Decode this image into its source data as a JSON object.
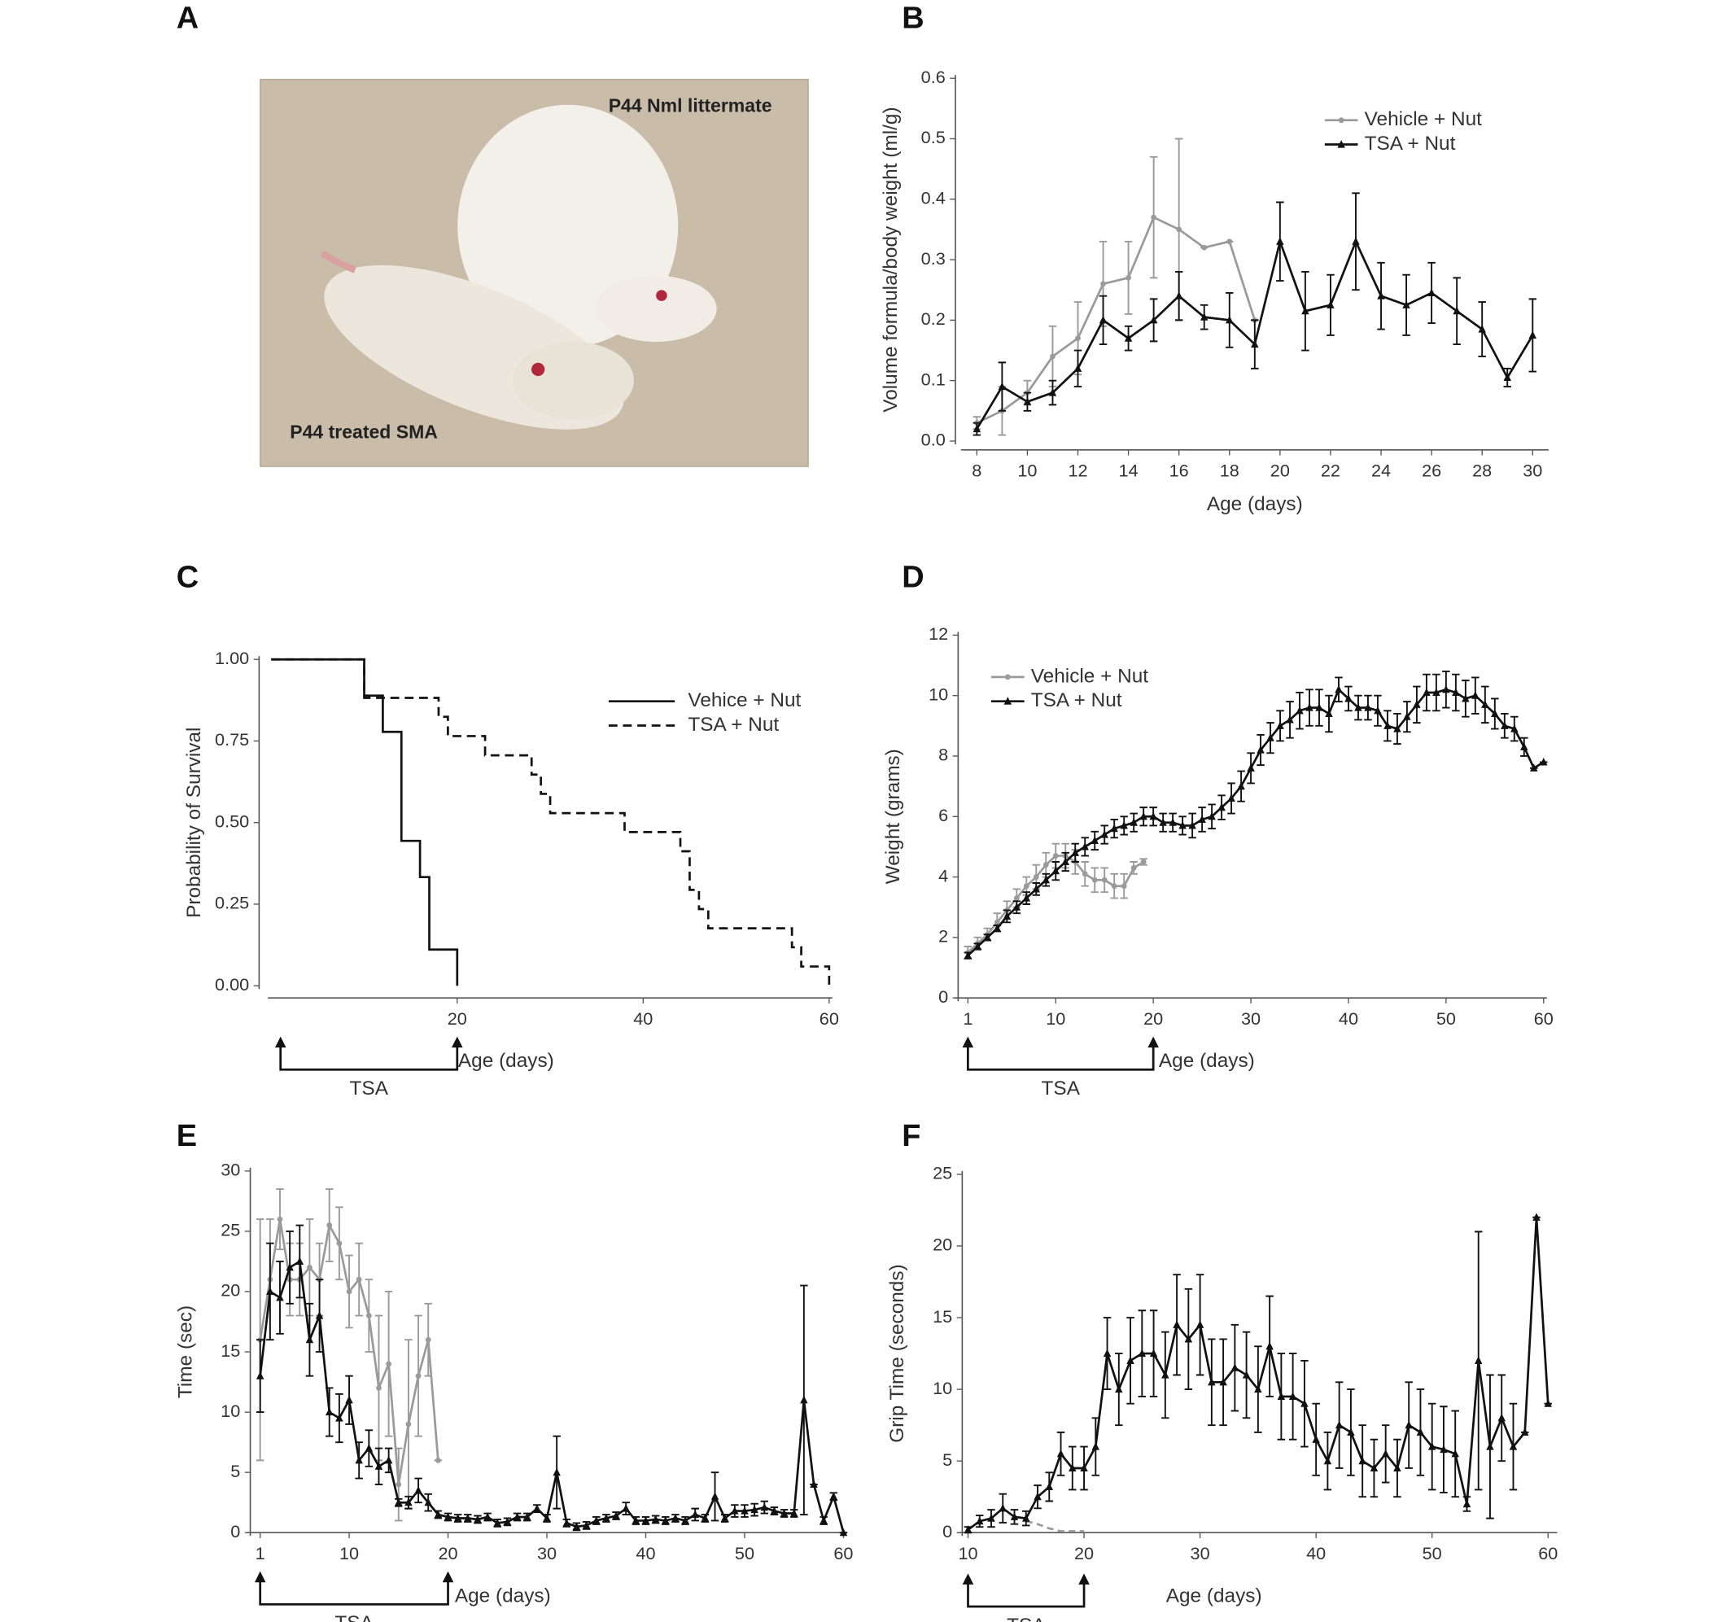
{
  "photo": {
    "panel": "A",
    "labels": [
      "P44 Nml littermate",
      "P44 treated SMA"
    ]
  },
  "chart_data": [
    {
      "type": "line",
      "panel": "B",
      "x_label": "Age (days)",
      "y_label": "Volume formula/body weight (ml/g)",
      "xlim": [
        7.5,
        30.5
      ],
      "ylim": [
        0,
        0.6
      ],
      "xticks": [
        8,
        10,
        12,
        14,
        16,
        18,
        20,
        22,
        24,
        26,
        28,
        30
      ],
      "yticks": [
        {
          "value": 0,
          "label": "0.0"
        },
        0.1,
        0.2,
        0.3,
        0.4,
        0.5,
        0.6
      ],
      "legend": "upper right",
      "series": [
        {
          "name": "Vehicle + Nut",
          "color": "#9a9a9a",
          "marker": "circle",
          "line_style": "solid",
          "x": [
            8,
            9,
            10,
            11,
            12,
            13,
            14,
            15,
            16,
            17,
            18,
            19
          ],
          "values": [
            0.03,
            0.05,
            0.08,
            0.14,
            0.17,
            0.26,
            0.27,
            0.37,
            0.35,
            0.32,
            0.33,
            0.2
          ],
          "errors": [
            0.01,
            0.04,
            0.02,
            0.05,
            0.06,
            0.07,
            0.06,
            0.1,
            0.15,
            0,
            0,
            0
          ]
        },
        {
          "name": "TSA + Nut",
          "color": "#111111",
          "marker": "triangle",
          "line_style": "solid",
          "x": [
            8,
            9,
            10,
            11,
            12,
            13,
            14,
            15,
            16,
            17,
            18,
            19,
            20,
            21,
            22,
            23,
            24,
            25,
            26,
            27,
            28,
            29,
            30
          ],
          "values": [
            0.02,
            0.09,
            0.065,
            0.08,
            0.12,
            0.2,
            0.17,
            0.2,
            0.24,
            0.205,
            0.2,
            0.16,
            0.33,
            0.215,
            0.225,
            0.33,
            0.24,
            0.225,
            0.245,
            0.215,
            0.185,
            0.105,
            0.175
          ],
          "errors": [
            0.01,
            0.04,
            0.015,
            0.02,
            0.03,
            0.04,
            0.02,
            0.035,
            0.04,
            0.02,
            0.045,
            0.04,
            0.065,
            0.065,
            0.05,
            0.08,
            0.055,
            0.05,
            0.05,
            0.055,
            0.045,
            0.015,
            0.06
          ]
        }
      ]
    },
    {
      "type": "step",
      "panel": "C",
      "x_label": "Age (days)",
      "y_label": "Probability of Survival",
      "xlim": [
        0,
        60
      ],
      "ylim": [
        0,
        1
      ],
      "xticks": [
        20,
        40,
        60
      ],
      "yticks": [
        {
          "value": 0,
          "label": "0.00"
        },
        {
          "value": 0.25,
          "label": "0.25"
        },
        {
          "value": 0.5,
          "label": "0.50"
        },
        {
          "value": 0.75,
          "label": "0.75"
        },
        {
          "value": 1,
          "label": "1.00"
        }
      ],
      "legend": "upper right",
      "annotation": {
        "label": "TSA",
        "x": [
          1,
          20
        ]
      },
      "series": [
        {
          "name": "Vehice + Nut",
          "color": "#111111",
          "line_style": "solid",
          "x": [
            0,
            10,
            12,
            14,
            16,
            17,
            20
          ],
          "values": [
            1,
            0.889,
            0.778,
            0.444,
            0.333,
            0.111,
            0
          ]
        },
        {
          "name": "TSA + Nut",
          "color": "#111111",
          "line_style": "dashed",
          "x": [
            0,
            10,
            18,
            19,
            23,
            28,
            29,
            30,
            38,
            44,
            45,
            46,
            47,
            56,
            57,
            60
          ],
          "values": [
            1,
            0.882,
            0.824,
            0.765,
            0.706,
            0.647,
            0.588,
            0.529,
            0.471,
            0.412,
            0.294,
            0.235,
            0.176,
            0.118,
            0.059,
            0
          ]
        }
      ]
    },
    {
      "type": "line",
      "panel": "D",
      "x_label": "Age (days)",
      "y_label": "Weight (grams)",
      "xlim": [
        0,
        60
      ],
      "ylim": [
        0,
        12
      ],
      "xticks": [
        1,
        10,
        20,
        30,
        40,
        50,
        60
      ],
      "yticks": [
        0,
        2,
        4,
        6,
        8,
        10,
        12
      ],
      "legend": "upper left",
      "annotation": {
        "label": "TSA",
        "x": [
          1,
          20
        ]
      },
      "series": [
        {
          "name": "Vehicle + Nut",
          "color": "#9a9a9a",
          "marker": "circle",
          "line_style": "solid",
          "x": [
            1,
            2,
            3,
            4,
            5,
            6,
            7,
            8,
            9,
            10,
            11,
            12,
            13,
            14,
            15,
            16,
            17,
            18,
            19
          ],
          "values": [
            1.5,
            1.8,
            2.1,
            2.5,
            2.9,
            3.3,
            3.7,
            4.0,
            4.4,
            4.7,
            4.7,
            4.5,
            4.1,
            3.9,
            3.9,
            3.7,
            3.7,
            4.3,
            4.5
          ],
          "errors": [
            0.2,
            0.2,
            0.2,
            0.3,
            0.3,
            0.3,
            0.3,
            0.4,
            0.4,
            0.4,
            0.4,
            0.4,
            0.4,
            0.4,
            0.4,
            0.4,
            0.4,
            0.2,
            0.1
          ]
        },
        {
          "name": "TSA + Nut",
          "color": "#111111",
          "marker": "triangle",
          "line_style": "solid",
          "x": [
            1,
            2,
            3,
            4,
            5,
            6,
            7,
            8,
            9,
            10,
            11,
            12,
            13,
            14,
            15,
            16,
            17,
            18,
            19,
            20,
            21,
            22,
            23,
            24,
            25,
            26,
            27,
            28,
            29,
            30,
            31,
            32,
            33,
            34,
            35,
            36,
            37,
            38,
            39,
            40,
            41,
            42,
            43,
            44,
            45,
            46,
            47,
            48,
            49,
            50,
            51,
            52,
            53,
            54,
            55,
            56,
            57,
            58,
            59,
            60
          ],
          "values": [
            1.4,
            1.7,
            2.0,
            2.3,
            2.7,
            3.0,
            3.3,
            3.6,
            3.9,
            4.2,
            4.5,
            4.8,
            5.0,
            5.2,
            5.4,
            5.6,
            5.7,
            5.8,
            6.0,
            6.0,
            5.8,
            5.8,
            5.7,
            5.7,
            5.9,
            6.0,
            6.3,
            6.6,
            7.0,
            7.6,
            8.2,
            8.6,
            9.0,
            9.2,
            9.5,
            9.6,
            9.6,
            9.4,
            10.2,
            9.9,
            9.6,
            9.6,
            9.5,
            9.0,
            8.9,
            9.3,
            9.7,
            10.1,
            10.1,
            10.2,
            10.1,
            9.9,
            10.0,
            9.7,
            9.4,
            9.0,
            8.9,
            8.3,
            7.6,
            7.8
          ],
          "errors": [
            0.1,
            0.1,
            0.1,
            0.1,
            0.2,
            0.2,
            0.2,
            0.2,
            0.2,
            0.3,
            0.3,
            0.3,
            0.3,
            0.3,
            0.3,
            0.3,
            0.3,
            0.3,
            0.3,
            0.3,
            0.3,
            0.3,
            0.3,
            0.4,
            0.4,
            0.4,
            0.4,
            0.5,
            0.5,
            0.5,
            0.5,
            0.5,
            0.5,
            0.6,
            0.6,
            0.6,
            0.6,
            0.6,
            0.4,
            0.4,
            0.4,
            0.4,
            0.5,
            0.5,
            0.5,
            0.5,
            0.6,
            0.6,
            0.6,
            0.6,
            0.6,
            0.6,
            0.6,
            0.6,
            0.5,
            0.4,
            0.4,
            0.3,
            0,
            0
          ]
        }
      ]
    },
    {
      "type": "line",
      "y_label": "Time (sec)",
      "panel": "E",
      "x_label": "Age (days)",
      "xlim": [
        0,
        60
      ],
      "ylim": [
        0,
        30
      ],
      "xticks": [
        1,
        10,
        20,
        30,
        40,
        50,
        60
      ],
      "yticks": [
        0,
        5,
        10,
        15,
        20,
        25,
        30
      ],
      "annotation": {
        "label": "TSA",
        "x": [
          1,
          20
        ]
      },
      "series": [
        {
          "color": "#9a9a9a",
          "marker": "circle",
          "line_style": "solid",
          "x": [
            1,
            2,
            3,
            4,
            5,
            6,
            7,
            8,
            9,
            10,
            11,
            12,
            13,
            14,
            15,
            16,
            17,
            18,
            19
          ],
          "values": [
            16,
            21,
            26,
            21,
            21,
            22,
            21,
            25.5,
            24,
            20,
            21,
            18,
            12,
            14,
            4,
            9,
            13,
            16,
            6
          ],
          "errors": [
            10,
            5,
            2.5,
            3,
            3,
            4,
            3,
            3,
            3,
            3,
            3,
            3,
            6,
            6,
            3,
            7,
            5,
            3,
            0
          ]
        },
        {
          "color": "#111111",
          "marker": "triangle",
          "line_style": "solid",
          "x": [
            1,
            2,
            3,
            4,
            5,
            6,
            7,
            8,
            9,
            10,
            11,
            12,
            13,
            14,
            15,
            16,
            17,
            18,
            19,
            20,
            21,
            22,
            23,
            24,
            25,
            26,
            27,
            28,
            29,
            30,
            31,
            32,
            33,
            34,
            35,
            36,
            37,
            38,
            39,
            40,
            41,
            42,
            43,
            44,
            45,
            46,
            47,
            48,
            49,
            50,
            51,
            52,
            53,
            54,
            55,
            56,
            57,
            58,
            59,
            60
          ],
          "values": [
            13,
            20,
            19.5,
            22,
            22.5,
            16,
            18,
            10,
            9.5,
            11,
            6,
            7,
            5.5,
            6,
            2.5,
            2.5,
            3.5,
            2.5,
            1.5,
            1.3,
            1.2,
            1.2,
            1.1,
            1.3,
            0.8,
            0.9,
            1.3,
            1.3,
            2,
            1.2,
            5,
            0.8,
            0.5,
            0.6,
            1,
            1.2,
            1.4,
            2,
            1,
            1,
            1.1,
            1,
            1.2,
            1,
            1.5,
            1.2,
            3,
            1.2,
            1.8,
            1.8,
            1.9,
            2.1,
            1.8,
            1.6,
            1.6,
            11,
            4,
            1,
            3,
            0
          ],
          "errors": [
            3,
            4,
            3,
            3,
            3,
            3,
            3,
            2,
            2,
            2,
            1.5,
            1.5,
            1.5,
            1,
            0.3,
            0.5,
            1,
            0.7,
            0.3,
            0.3,
            0.3,
            0.3,
            0.3,
            0.3,
            0.3,
            0.3,
            0.3,
            0.3,
            0.3,
            0.3,
            3,
            0.3,
            0.3,
            0.3,
            0.3,
            0.3,
            0.3,
            0.5,
            0.3,
            0.3,
            0.3,
            0.3,
            0.3,
            0.3,
            0.5,
            0.3,
            2,
            0.3,
            0.5,
            0.5,
            0.5,
            0.5,
            0.3,
            0.3,
            0.3,
            9.5,
            0,
            0.3,
            0.3,
            0
          ]
        }
      ]
    },
    {
      "type": "line",
      "panel": "F",
      "x_label": "Age (days)",
      "y_label": "Grip Time (seconds)",
      "xlim": [
        9.5,
        60.5
      ],
      "ylim": [
        0,
        25
      ],
      "xticks": [
        10,
        20,
        30,
        40,
        50,
        60
      ],
      "yticks": [
        0,
        5,
        10,
        15,
        20,
        25
      ],
      "annotation": {
        "label": "TSA",
        "x": [
          10,
          20
        ]
      },
      "series": [
        {
          "color": "#9a9a9a",
          "line_style": "dashed",
          "x": [
            15,
            16,
            17,
            18,
            19,
            20
          ],
          "values": [
            0.8,
            0.6,
            0.3,
            0.1,
            0.1,
            0.1
          ]
        },
        {
          "color": "#111111",
          "marker": "triangle",
          "line_style": "solid",
          "x": [
            10,
            11,
            12,
            13,
            14,
            15,
            16,
            17,
            18,
            19,
            20,
            21,
            22,
            23,
            24,
            25,
            26,
            27,
            28,
            29,
            30,
            31,
            32,
            33,
            34,
            35,
            36,
            37,
            38,
            39,
            40,
            41,
            42,
            43,
            44,
            45,
            46,
            47,
            48,
            49,
            50,
            51,
            52,
            53,
            54,
            55,
            56,
            57,
            58,
            59,
            60
          ],
          "values": [
            0.2,
            0.8,
            1,
            1.7,
            1.1,
            1,
            2.5,
            3.2,
            5.5,
            4.5,
            4.5,
            6,
            12.5,
            10,
            12,
            12.5,
            12.5,
            11,
            14.5,
            13.5,
            14.5,
            10.5,
            10.5,
            11.5,
            11,
            10,
            13,
            9.5,
            9.5,
            9,
            6.5,
            5,
            7.5,
            7,
            5,
            4.5,
            5.5,
            4.5,
            7.5,
            7,
            6,
            5.8,
            5.5,
            2,
            12,
            6,
            8,
            6,
            7,
            22,
            9
          ],
          "errors": [
            0.2,
            0.4,
            0.6,
            1,
            0.5,
            0.5,
            0.8,
            1,
            1.5,
            1.5,
            1.5,
            2,
            2.5,
            2.5,
            3,
            3,
            3,
            3,
            3.5,
            3.5,
            3.5,
            3,
            3,
            3,
            3,
            3,
            3.5,
            3,
            3,
            3,
            2.5,
            2,
            3,
            3,
            2.5,
            2,
            2,
            2,
            3,
            3,
            3,
            3,
            3,
            0.5,
            9,
            5,
            3,
            3,
            0,
            0,
            0
          ]
        }
      ]
    }
  ]
}
